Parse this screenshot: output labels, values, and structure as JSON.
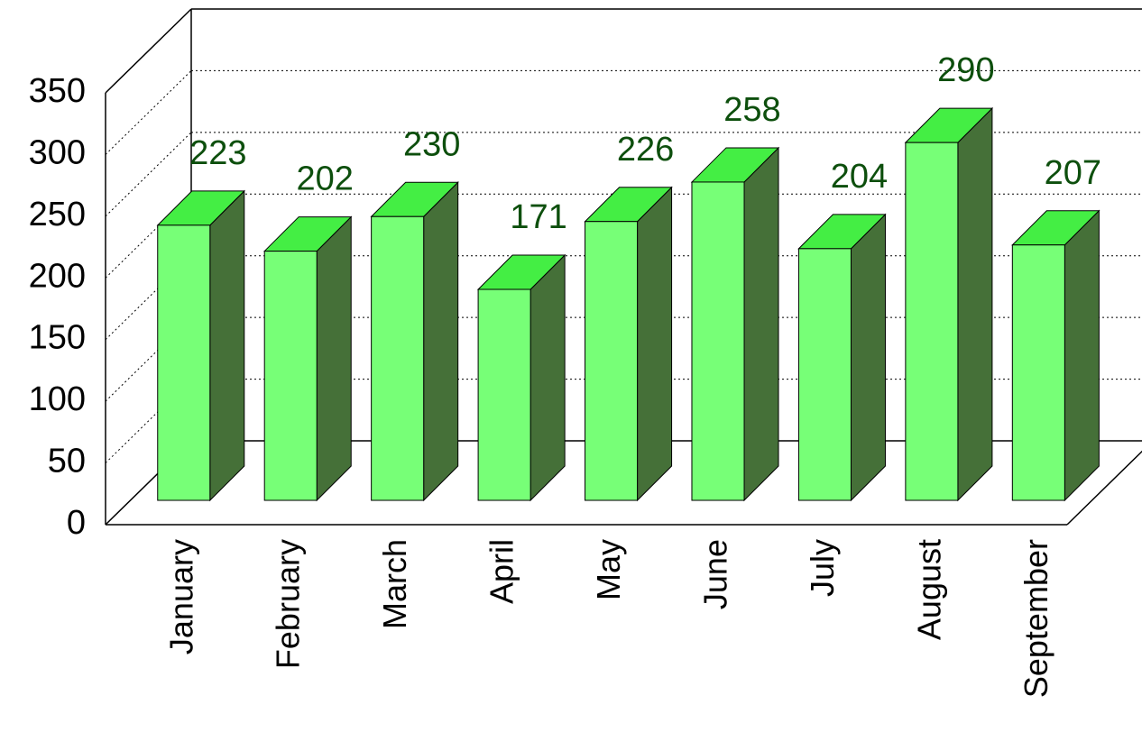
{
  "chart_data": {
    "type": "bar3d",
    "categories": [
      "January",
      "February",
      "March",
      "April",
      "May",
      "June",
      "July",
      "August",
      "September"
    ],
    "values": [
      223,
      202,
      230,
      171,
      226,
      258,
      204,
      290,
      207
    ],
    "color": "#77ff77",
    "side_color": "#457038",
    "top_color": "#44ee44",
    "label_color": "#0d4f0d",
    "ylim": [
      0,
      350
    ],
    "yticks": [
      0,
      50,
      100,
      150,
      200,
      250,
      300,
      350
    ],
    "grid": true
  }
}
